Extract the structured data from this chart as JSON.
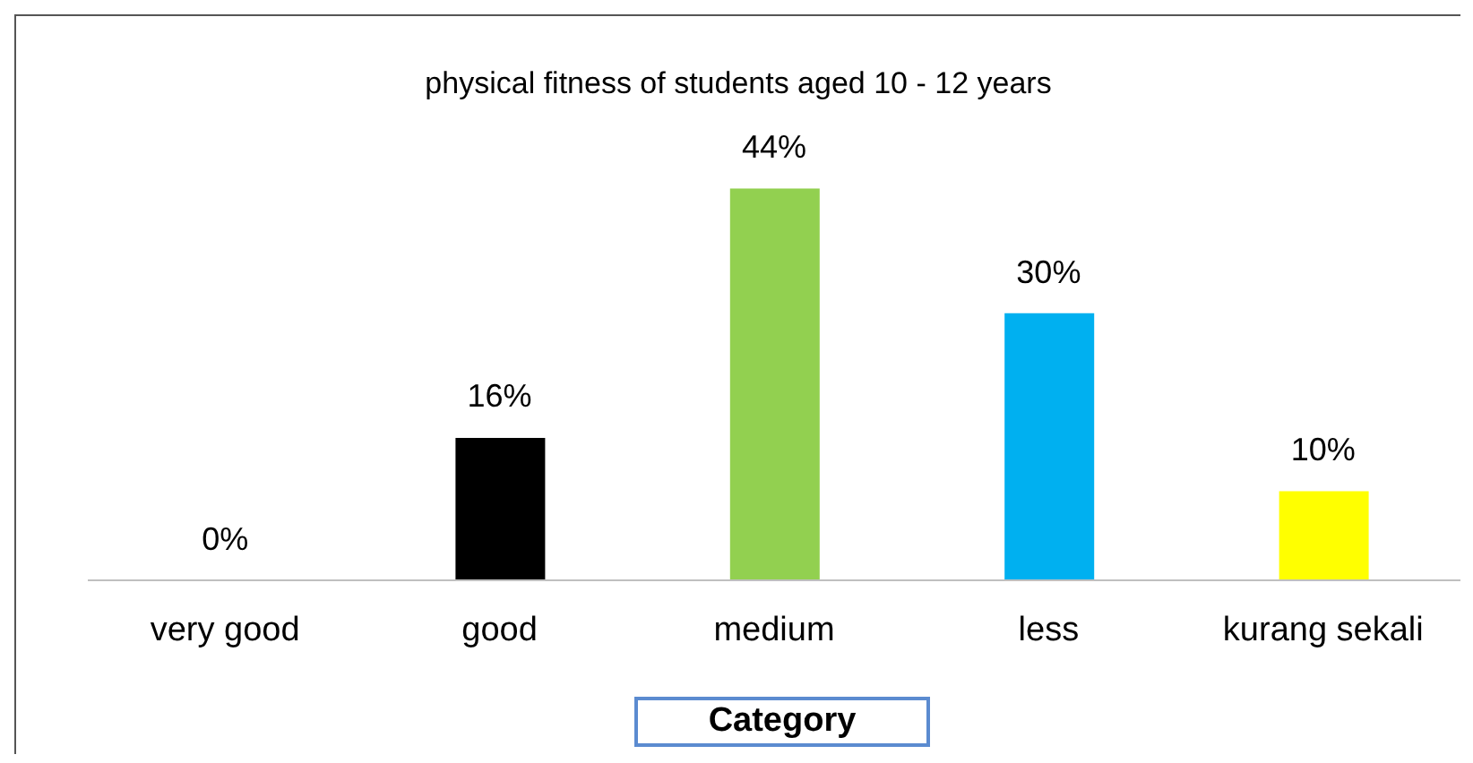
{
  "chart_data": {
    "type": "bar",
    "title": "physical fitness of students aged 10 - 12 years",
    "xlabel": "Category",
    "categories": [
      "very good",
      "good",
      "medium",
      "less",
      "kurang sekali"
    ],
    "values": [
      0,
      16,
      44,
      30,
      10
    ],
    "colors": [
      "#000000",
      "#000000",
      "#92d050",
      "#00b0f0",
      "#ffff00"
    ],
    "value_labels": [
      "0%",
      "16%",
      "44%",
      "30%",
      "10%"
    ]
  }
}
